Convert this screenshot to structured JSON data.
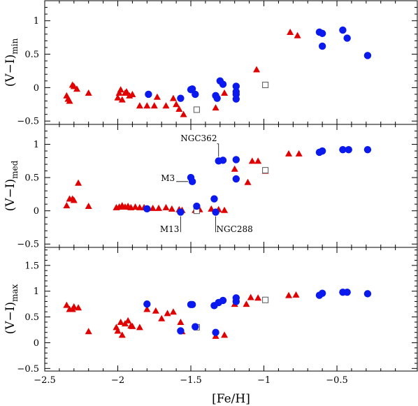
{
  "chart_data": {
    "type": "scatter",
    "xlabel": "[Fe/H]",
    "xlim": [
      -2.5,
      0.05
    ],
    "xticks": [
      -2.5,
      -2,
      -1.5,
      -1,
      -0.5
    ],
    "xtick_labels": [
      "−2.5",
      "−2",
      "−1.5",
      "−1",
      "−0.5"
    ],
    "colors": {
      "triangle": "#e00000",
      "circle": "#0a1aee",
      "square": "#555555"
    },
    "panels": [
      {
        "id": "min",
        "ylabel": "(V−I)",
        "ylabel_sub": "min",
        "ylim": [
          -0.55,
          1.3
        ],
        "yticks": [
          -0.5,
          0,
          0.5,
          1
        ],
        "ytick_labels": [
          "−0.5",
          "0",
          "0.5",
          "1"
        ],
        "triangles": [
          [
            -2.35,
            -0.12
          ],
          [
            -2.34,
            -0.17
          ],
          [
            -2.33,
            -0.2
          ],
          [
            -2.31,
            0.04
          ],
          [
            -2.3,
            0.02
          ],
          [
            -2.28,
            -0.02
          ],
          [
            -2.2,
            -0.08
          ],
          [
            -2.0,
            -0.15
          ],
          [
            -1.99,
            -0.08
          ],
          [
            -1.98,
            -0.03
          ],
          [
            -1.97,
            -0.18
          ],
          [
            -1.95,
            -0.08
          ],
          [
            -1.94,
            -0.06
          ],
          [
            -1.92,
            -0.12
          ],
          [
            -1.9,
            -0.1
          ],
          [
            -1.85,
            -0.27
          ],
          [
            -1.8,
            -0.27
          ],
          [
            -1.75,
            -0.27
          ],
          [
            -1.73,
            -0.14
          ],
          [
            -1.67,
            -0.27
          ],
          [
            -1.62,
            -0.16
          ],
          [
            -1.6,
            -0.25
          ],
          [
            -1.58,
            -0.32
          ],
          [
            -1.55,
            -0.4
          ],
          [
            -1.33,
            -0.3
          ],
          [
            -1.27,
            -0.08
          ],
          [
            -1.05,
            0.27
          ],
          [
            -0.82,
            0.83
          ],
          [
            -0.77,
            0.78
          ]
        ],
        "circles": [
          [
            -1.79,
            -0.1
          ],
          [
            -1.57,
            -0.16
          ],
          [
            -1.5,
            -0.03
          ],
          [
            -1.49,
            -0.02
          ],
          [
            -1.47,
            -0.1
          ],
          [
            -1.33,
            -0.12
          ],
          [
            -1.32,
            -0.16
          ],
          [
            -1.3,
            0.1
          ],
          [
            -1.28,
            0.05
          ],
          [
            -1.19,
            0.02
          ],
          [
            -1.19,
            -0.06
          ],
          [
            -1.19,
            -0.1
          ],
          [
            -1.19,
            -0.17
          ],
          [
            -0.62,
            0.83
          ],
          [
            -0.6,
            0.81
          ],
          [
            -0.6,
            0.62
          ],
          [
            -0.46,
            0.86
          ],
          [
            -0.43,
            0.74
          ],
          [
            -0.29,
            0.48
          ]
        ],
        "squares": [
          [
            -1.46,
            -0.33
          ],
          [
            -0.99,
            0.04
          ]
        ],
        "annotations": []
      },
      {
        "id": "med",
        "ylabel": "(V−I)",
        "ylabel_sub": "med",
        "ylim": [
          -0.55,
          1.3
        ],
        "yticks": [
          -0.5,
          0,
          0.5,
          1
        ],
        "ytick_labels": [
          "−0.5",
          "0",
          "0.5",
          "1"
        ],
        "triangles": [
          [
            -2.35,
            0.08
          ],
          [
            -2.33,
            0.18
          ],
          [
            -2.31,
            0.18
          ],
          [
            -2.3,
            0.16
          ],
          [
            -2.27,
            0.42
          ],
          [
            -2.2,
            0.07
          ],
          [
            -2.01,
            0.05
          ],
          [
            -1.99,
            0.06
          ],
          [
            -1.97,
            0.08
          ],
          [
            -1.95,
            0.06
          ],
          [
            -1.93,
            0.07
          ],
          [
            -1.91,
            0.05
          ],
          [
            -1.88,
            0.06
          ],
          [
            -1.85,
            0.05
          ],
          [
            -1.82,
            0.05
          ],
          [
            -1.76,
            0.04
          ],
          [
            -1.72,
            0.04
          ],
          [
            -1.67,
            0.05
          ],
          [
            -1.63,
            0.03
          ],
          [
            -1.58,
            0.02
          ],
          [
            -1.56,
            0.01
          ],
          [
            -1.47,
            0.01
          ],
          [
            -1.44,
            0.02
          ],
          [
            -1.36,
            0.03
          ],
          [
            -1.31,
            0.02
          ],
          [
            -1.27,
            0.01
          ],
          [
            -1.2,
            0.63
          ],
          [
            -1.11,
            0.43
          ],
          [
            -1.08,
            0.75
          ],
          [
            -1.04,
            0.75
          ],
          [
            -0.99,
            0.6
          ],
          [
            -0.83,
            0.86
          ],
          [
            -0.76,
            0.86
          ]
        ],
        "circles": [
          [
            -1.8,
            0.03
          ],
          [
            -1.57,
            -0.02
          ],
          [
            -1.5,
            0.5
          ],
          [
            -1.49,
            0.44
          ],
          [
            -1.46,
            0.07
          ],
          [
            -1.34,
            0.18
          ],
          [
            -1.33,
            -0.02
          ],
          [
            -1.31,
            0.75
          ],
          [
            -1.28,
            0.76
          ],
          [
            -1.19,
            0.77
          ],
          [
            -1.19,
            0.48
          ],
          [
            -0.62,
            0.88
          ],
          [
            -0.6,
            0.9
          ],
          [
            -0.46,
            0.92
          ],
          [
            -0.42,
            0.92
          ],
          [
            -0.29,
            0.92
          ]
        ],
        "squares": [
          [
            -1.46,
            0.0
          ],
          [
            -0.99,
            0.61
          ]
        ],
        "annotations": [
          {
            "text": "NGC362",
            "x": -1.31,
            "y": 0.75,
            "label_x": -1.34,
            "label_y": 1.05,
            "anchor": "end",
            "side": "above"
          },
          {
            "text": "M3",
            "x": -1.49,
            "y": 0.44,
            "label_x": -1.6,
            "label_y": 0.44,
            "anchor": "end",
            "side": "left"
          },
          {
            "text": "M13",
            "x": -1.57,
            "y": -0.02,
            "label_x": -1.57,
            "label_y": -0.3,
            "anchor": "end",
            "side": "below"
          },
          {
            "text": "NGC288",
            "x": -1.33,
            "y": -0.02,
            "label_x": -1.33,
            "label_y": -0.3,
            "anchor": "start",
            "side": "below"
          }
        ]
      },
      {
        "id": "max",
        "ylabel": "(V−I)",
        "ylabel_sub": "max",
        "ylim": [
          -0.55,
          1.85
        ],
        "yticks": [
          -0.5,
          0,
          0.5,
          1,
          1.5
        ],
        "ytick_labels": [
          "−0.5",
          "0",
          "0.5",
          "1",
          "1.5"
        ],
        "triangles": [
          [
            -2.35,
            0.73
          ],
          [
            -2.33,
            0.65
          ],
          [
            -2.31,
            0.65
          ],
          [
            -2.3,
            0.7
          ],
          [
            -2.27,
            0.68
          ],
          [
            -2.2,
            0.22
          ],
          [
            -2.01,
            0.3
          ],
          [
            -2.0,
            0.23
          ],
          [
            -1.98,
            0.4
          ],
          [
            -1.97,
            0.15
          ],
          [
            -1.95,
            0.37
          ],
          [
            -1.93,
            0.43
          ],
          [
            -1.91,
            0.33
          ],
          [
            -1.9,
            0.32
          ],
          [
            -1.85,
            0.3
          ],
          [
            -1.8,
            0.65
          ],
          [
            -1.74,
            0.62
          ],
          [
            -1.7,
            0.47
          ],
          [
            -1.66,
            0.57
          ],
          [
            -1.62,
            0.6
          ],
          [
            -1.57,
            0.4
          ],
          [
            -1.56,
            0.22
          ],
          [
            -1.33,
            0.13
          ],
          [
            -1.27,
            0.15
          ],
          [
            -1.2,
            0.75
          ],
          [
            -1.12,
            0.75
          ],
          [
            -1.09,
            0.88
          ],
          [
            -1.04,
            0.87
          ],
          [
            -0.83,
            0.92
          ],
          [
            -0.78,
            0.93
          ]
        ],
        "circles": [
          [
            -1.8,
            0.75
          ],
          [
            -1.57,
            0.23
          ],
          [
            -1.5,
            0.74
          ],
          [
            -1.49,
            0.74
          ],
          [
            -1.47,
            0.31
          ],
          [
            -1.34,
            0.72
          ],
          [
            -1.33,
            0.2
          ],
          [
            -1.31,
            0.78
          ],
          [
            -1.28,
            0.82
          ],
          [
            -1.19,
            0.87
          ],
          [
            -1.19,
            0.8
          ],
          [
            -0.62,
            0.92
          ],
          [
            -0.6,
            0.96
          ],
          [
            -0.46,
            0.98
          ],
          [
            -0.43,
            0.98
          ],
          [
            -0.29,
            0.95
          ]
        ],
        "squares": [
          [
            -1.46,
            0.3
          ],
          [
            -0.99,
            0.83
          ]
        ],
        "annotations": []
      }
    ]
  }
}
